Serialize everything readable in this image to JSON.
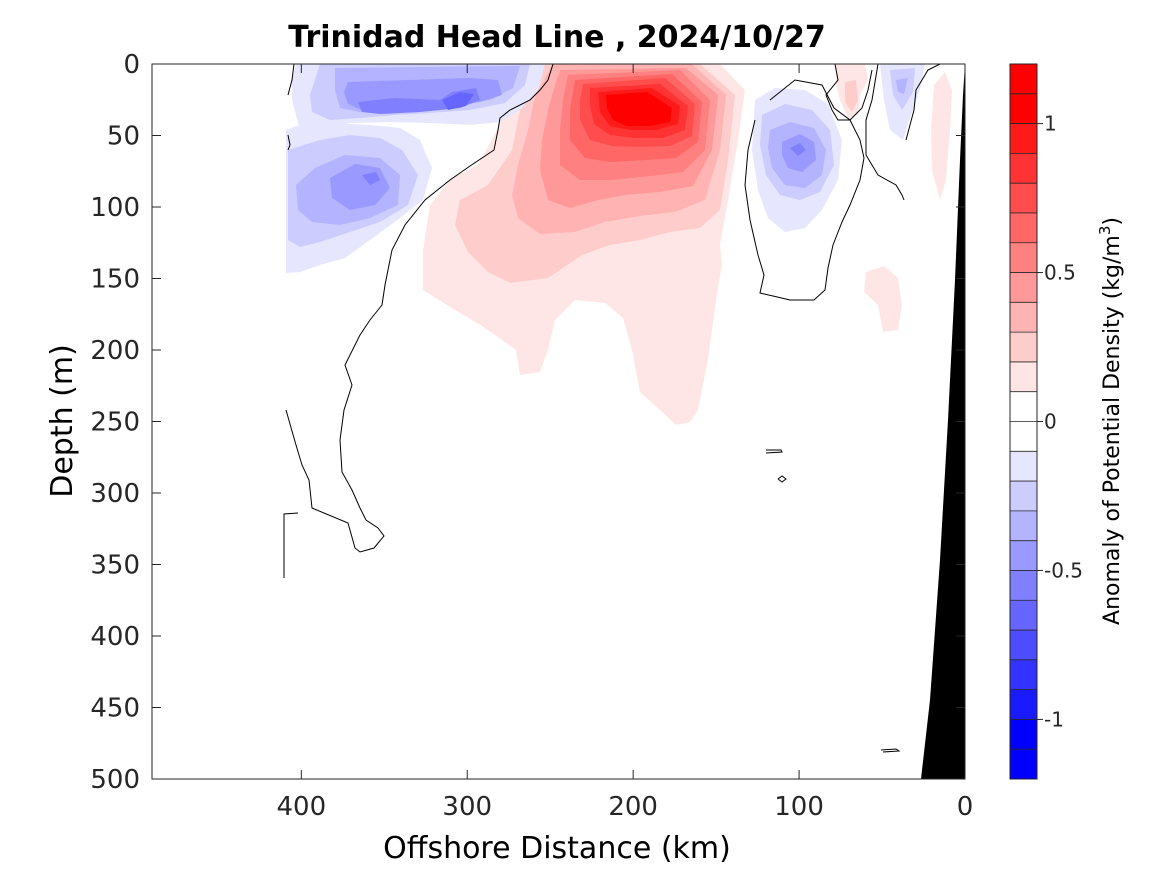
{
  "chart_data": {
    "type": "contour",
    "title": "Trinidad Head Line , 2024/10/27",
    "xlabel": "Offshore Distance (km)",
    "ylabel": "Depth (m)",
    "x_reversed": true,
    "y_reversed": true,
    "xlim": [
      490,
      0
    ],
    "ylim": [
      0,
      500
    ],
    "x_ticks": [
      400,
      300,
      200,
      100,
      0
    ],
    "y_ticks": [
      0,
      50,
      100,
      150,
      200,
      250,
      300,
      350,
      400,
      450,
      500
    ],
    "colorbar": {
      "label": "Anomaly of Potential Density (kg/m3)",
      "label_main": "Anomaly of Potential Density (kg/m",
      "label_sup": "3",
      "label_close": ")",
      "range": [
        -1.2,
        1.2
      ],
      "step": 0.1,
      "ticks": [
        1,
        0.5,
        0,
        -0.5,
        -1
      ],
      "tick_labels": [
        "1",
        "0.5",
        "0",
        "-0.5",
        "-1"
      ],
      "colors_positive": [
        "#ffffff",
        "#ffe6e6",
        "#ffcccc",
        "#ffb3b3",
        "#ff9999",
        "#ff8080",
        "#ff6666",
        "#ff4d4d",
        "#ff3333",
        "#ff1a1a",
        "#ff0000",
        "#ff0000"
      ],
      "colors_negative": [
        "#ffffff",
        "#e6e6ff",
        "#ccccff",
        "#b3b3ff",
        "#9999ff",
        "#8080ff",
        "#6666ff",
        "#4d4dff",
        "#3333ff",
        "#1a1aff",
        "#0000ff",
        "#0000ff"
      ]
    },
    "contour_line_level": 0,
    "features": [
      {
        "name": "warm anomaly core",
        "center": [
          190,
          35
        ],
        "peak": 1.15
      },
      {
        "name": "cold anomaly near surface",
        "center": [
          340,
          25
        ],
        "peak": -0.55
      },
      {
        "name": "cold anomaly west",
        "center": [
          355,
          80
        ],
        "peak": -0.45
      },
      {
        "name": "cold eddy nearshore",
        "center": [
          110,
          60
        ],
        "peak": -0.4
      },
      {
        "name": "cold anomaly coastal",
        "center": [
          40,
          15
        ],
        "peak": -0.2
      }
    ],
    "data_extent_x_km": [
      410,
      0
    ],
    "bathymetry_color": "#000000"
  }
}
